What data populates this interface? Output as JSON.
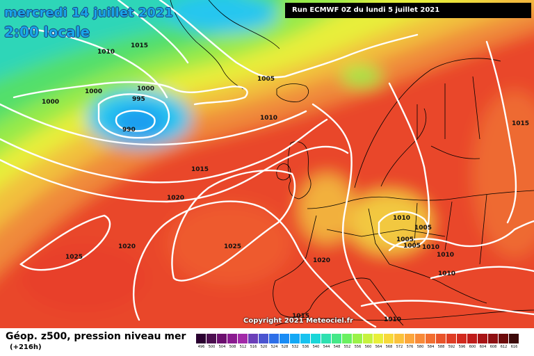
{
  "header": {
    "date": "mercredi 14 juillet 2021",
    "time": "2:00 locale",
    "run": "Run ECMWF 0Z du lundi 5 juillet 2021"
  },
  "footer": {
    "parameter": "Géop. z500, pression niveau mer",
    "step": "(+216h)",
    "copyright": "Copyright 2021 Meteociel.fr"
  },
  "scale": {
    "ticks": [
      "496",
      "500",
      "504",
      "508",
      "512",
      "516",
      "520",
      "524",
      "528",
      "532",
      "536",
      "540",
      "544",
      "548",
      "552",
      "556",
      "560",
      "564",
      "568",
      "572",
      "576",
      "580",
      "584",
      "588",
      "592",
      "596",
      "600",
      "604",
      "608",
      "612",
      "616"
    ],
    "colors": [
      "#2a0030",
      "#4b0e4f",
      "#6b0f6e",
      "#8a1b8f",
      "#a22aa8",
      "#6b3fb8",
      "#4b55d0",
      "#2e6fe8",
      "#1a8cf5",
      "#14a8f5",
      "#18c2ef",
      "#1ad6d8",
      "#2ee0b0",
      "#45e888",
      "#6af060",
      "#9af248",
      "#c6f23e",
      "#e8ef3a",
      "#f7d93a",
      "#fbc23c",
      "#fca63c",
      "#f88a38",
      "#f26e30",
      "#e9542a",
      "#df3d24",
      "#d22a1e",
      "#bf1c1a",
      "#a81416",
      "#8e0f12",
      "#6d0b0c",
      "#3c0a0a"
    ]
  },
  "isobars": {
    "l1": "1015",
    "l2": "1010",
    "l3": "1000",
    "l4": "1000",
    "l5": "995",
    "l6": "990",
    "l7": "1000",
    "l8": "1005",
    "l9": "1010",
    "l10": "1015",
    "l11": "1020",
    "l12": "1020",
    "l13": "1025",
    "l14": "1025",
    "l15": "1020",
    "l16": "1010",
    "l17": "1005",
    "l18": "1005",
    "l19": "1010",
    "l20": "1010",
    "l21": "1005",
    "l22": "1015",
    "l23": "1010",
    "l24": "1015",
    "l25": "1010"
  },
  "colors": {
    "low_core": "#27c6f0",
    "green_band": "#5ce65c",
    "yellow_band": "#f7e23a",
    "orange_band": "#f69a3a",
    "red_band": "#e6402a"
  }
}
